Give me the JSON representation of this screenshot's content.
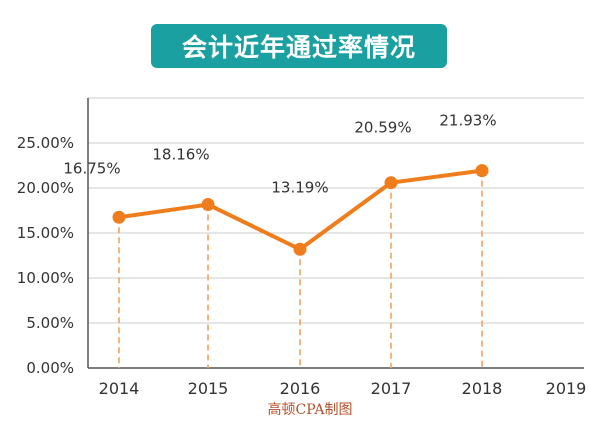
{
  "header": {
    "title": "会计近年通过率情况"
  },
  "watermark": "高顿CPA制图",
  "chart_data": {
    "type": "line",
    "title": "会计近年通过率情况",
    "xlabel": "",
    "ylabel": "",
    "categories": [
      "2014",
      "2015",
      "2016",
      "2017",
      "2018",
      "2019"
    ],
    "values": [
      16.75,
      18.16,
      13.19,
      20.59,
      21.93,
      null
    ],
    "data_labels": [
      "16.75%",
      "18.16%",
      "13.19%",
      "20.59%",
      "21.93%",
      ""
    ],
    "yticks": [
      "0.00%",
      "5.00%",
      "10.00%",
      "15.00%",
      "20.00%",
      "25.00%"
    ],
    "ylim": [
      0,
      30
    ],
    "grid": true,
    "legend": "none",
    "colors": {
      "line": "#f07d1c",
      "drop_line": "#f4a25c",
      "grid": "#cccccc",
      "title_bg": "#1aa0a0"
    }
  }
}
